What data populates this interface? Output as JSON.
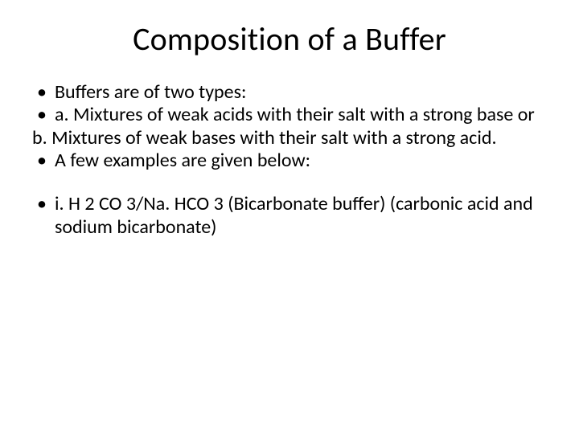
{
  "slide": {
    "title": "Composition of a Buffer",
    "background_color": "#ffffff",
    "text_color": "#000000",
    "title_fontsize": 40,
    "body_fontsize": 24,
    "font_family": "Calibri",
    "bullets": {
      "b1": "Buffers are of two types:",
      "b2": " a. Mixtures of weak acids with their salt with a strong base or",
      "b3": "b. Mixtures of weak bases with their salt with a strong acid.",
      "b4": "A few examples are given below:",
      "b5": " i. H 2 CO 3/Na. HCO 3 (Bicarbonate buffer) (carbonic acid and sodium bicarbonate)"
    }
  }
}
